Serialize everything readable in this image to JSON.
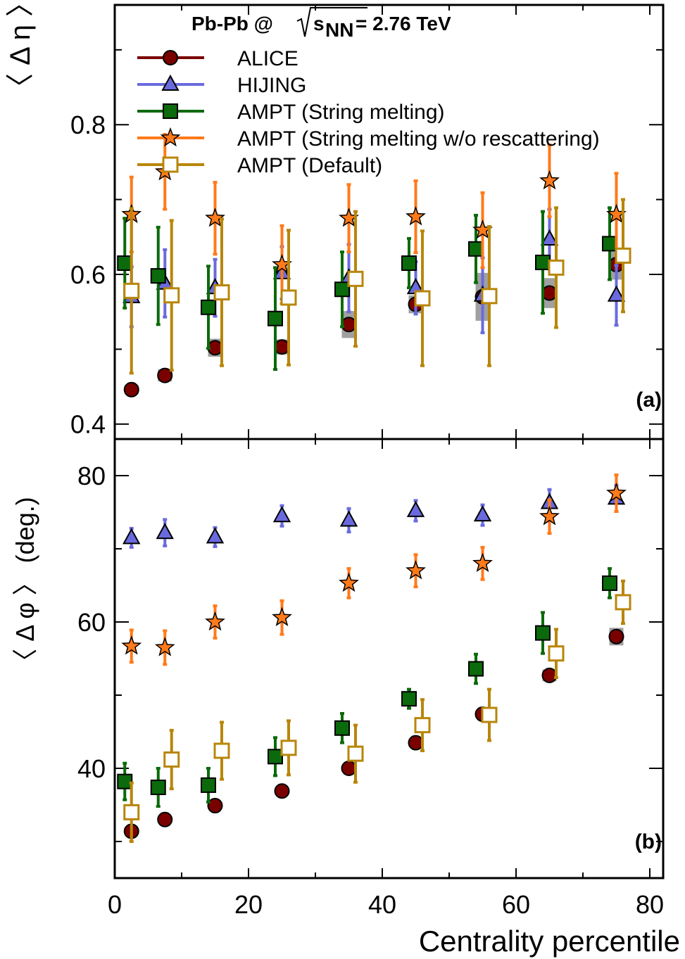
{
  "header": {
    "system": "Pb-Pb @",
    "sqrt_var": "s",
    "sqrt_sub": "NN",
    "energy": "= 2.76 TeV"
  },
  "x_axis": {
    "label": "Centrality percentile",
    "range": [
      0,
      82
    ],
    "ticks": [
      "0",
      "20",
      "40",
      "60",
      "80"
    ]
  },
  "panels": [
    {
      "tag": "(a)",
      "ylabel": "〈 Δ η 〉",
      "yrange": [
        0.38,
        0.96
      ],
      "ticks": [
        "0.4",
        "0.6",
        "0.8"
      ]
    },
    {
      "tag": "(b)",
      "ylabel": "〈 Δ φ 〉 (deg.)",
      "yrange": [
        25,
        85
      ],
      "ticks": [
        "40",
        "60",
        "80"
      ]
    }
  ],
  "legend": [
    {
      "label": "ALICE",
      "color": "#7a0000",
      "marker": "circle-filled"
    },
    {
      "label": "HIJING",
      "color": "#6a6ade",
      "marker": "triangle-filled"
    },
    {
      "label": "AMPT (String melting)",
      "color": "#0b6a0b",
      "marker": "square-filled"
    },
    {
      "label": "AMPT (String melting w/o rescattering)",
      "color": "#ff7a1a",
      "marker": "star-filled"
    },
    {
      "label": "AMPT (Default)",
      "color": "#b8860b",
      "marker": "square-open"
    }
  ],
  "chart_data": [
    {
      "type": "scatter",
      "panel": "(a)",
      "ylabel": "〈 Δ η 〉",
      "xlabel": "Centrality percentile",
      "xlim": [
        0,
        82
      ],
      "ylim": [
        0.38,
        0.96
      ],
      "series": [
        {
          "name": "ALICE",
          "x": [
            2.5,
            7.5,
            15,
            25,
            35,
            45,
            55,
            65,
            75
          ],
          "y": [
            0.446,
            0.465,
            0.502,
            0.503,
            0.533,
            0.56,
            0.57,
            0.575,
            0.613
          ],
          "syst": [
            0.006,
            0.008,
            0.012,
            0.01,
            0.018,
            0.012,
            0.032,
            0.02,
            0.02
          ]
        },
        {
          "name": "HIJING",
          "x": [
            2.5,
            7.5,
            15,
            25,
            35,
            45,
            55,
            65,
            75
          ],
          "y": [
            0.57,
            0.588,
            0.582,
            0.602,
            0.595,
            0.582,
            0.572,
            0.647,
            0.572
          ],
          "err": [
            0.04,
            0.045,
            0.038,
            0.035,
            0.045,
            0.035,
            0.05,
            0.04,
            0.04
          ]
        },
        {
          "name": "AMPT (String melting)",
          "x": [
            1.5,
            6.5,
            14,
            24,
            34,
            44,
            54,
            64,
            74
          ],
          "y": [
            0.615,
            0.598,
            0.556,
            0.541,
            0.58,
            0.615,
            0.634,
            0.616,
            0.641
          ],
          "err": [
            0.06,
            0.065,
            0.055,
            0.068,
            0.05,
            0.033,
            0.045,
            0.068,
            0.048
          ]
        },
        {
          "name": "AMPT (String melting w/o rescattering)",
          "x": [
            2.5,
            7.5,
            15,
            25,
            35,
            45,
            55,
            65,
            75
          ],
          "y": [
            0.68,
            0.737,
            0.675,
            0.613,
            0.675,
            0.677,
            0.659,
            0.725,
            0.68
          ],
          "err": [
            0.05,
            0.05,
            0.048,
            0.052,
            0.045,
            0.048,
            0.05,
            0.048,
            0.055
          ]
        },
        {
          "name": "AMPT (Default)",
          "x": [
            2.5,
            8.5,
            16,
            26,
            36,
            46,
            56,
            66,
            76
          ],
          "y": [
            0.578,
            0.572,
            0.576,
            0.569,
            0.594,
            0.568,
            0.571,
            0.609,
            0.625
          ],
          "err": [
            0.11,
            0.1,
            0.098,
            0.09,
            0.09,
            0.09,
            0.093,
            0.08,
            0.075
          ]
        }
      ]
    },
    {
      "type": "scatter",
      "panel": "(b)",
      "ylabel": "〈 Δ φ 〉 (deg.)",
      "xlabel": "Centrality percentile",
      "xlim": [
        0,
        82
      ],
      "ylim": [
        25,
        85
      ],
      "series": [
        {
          "name": "ALICE",
          "x": [
            2.5,
            7.5,
            15,
            25,
            35,
            45,
            55,
            65,
            75
          ],
          "y": [
            31.4,
            33.0,
            34.9,
            36.9,
            40.0,
            43.5,
            47.4,
            52.7,
            58.0
          ],
          "syst": [
            0.3,
            0.3,
            0.3,
            0.3,
            0.4,
            0.5,
            0.5,
            0.8,
            1.2
          ]
        },
        {
          "name": "HIJING",
          "x": [
            2.5,
            7.5,
            15,
            25,
            35,
            45,
            55,
            65,
            75
          ],
          "y": [
            71.5,
            72.2,
            71.6,
            74.5,
            73.9,
            75.2,
            74.6,
            76.3,
            76.9
          ],
          "err": [
            1.3,
            1.8,
            1.3,
            1.4,
            1.6,
            1.4,
            1.4,
            1.8,
            1.8
          ]
        },
        {
          "name": "AMPT (String melting)",
          "x": [
            1.5,
            6.5,
            14,
            24,
            34,
            44,
            54,
            64,
            74
          ],
          "y": [
            38.2,
            37.4,
            37.7,
            41.6,
            45.5,
            49.5,
            53.6,
            58.5,
            65.3
          ],
          "err": [
            2.5,
            2.6,
            2.3,
            2.6,
            2.0,
            1.3,
            2.0,
            2.8,
            2.0
          ]
        },
        {
          "name": "AMPT (String melting w/o rescattering)",
          "x": [
            2.5,
            7.5,
            15,
            25,
            35,
            45,
            55,
            65,
            75
          ],
          "y": [
            56.7,
            56.5,
            60.0,
            60.6,
            65.3,
            67.0,
            68.0,
            74.4,
            77.6
          ],
          "err": [
            2.2,
            2.3,
            2.2,
            2.3,
            2.0,
            2.2,
            2.2,
            2.3,
            2.5
          ]
        },
        {
          "name": "AMPT (Default)",
          "x": [
            2.5,
            8.5,
            16,
            26,
            36,
            46,
            56,
            66,
            76
          ],
          "y": [
            34.0,
            41.2,
            42.4,
            42.8,
            42.0,
            45.9,
            47.3,
            55.7,
            62.7
          ],
          "err": [
            4.0,
            4.0,
            3.9,
            3.7,
            3.9,
            3.5,
            3.5,
            3.3,
            2.9
          ]
        }
      ]
    }
  ]
}
